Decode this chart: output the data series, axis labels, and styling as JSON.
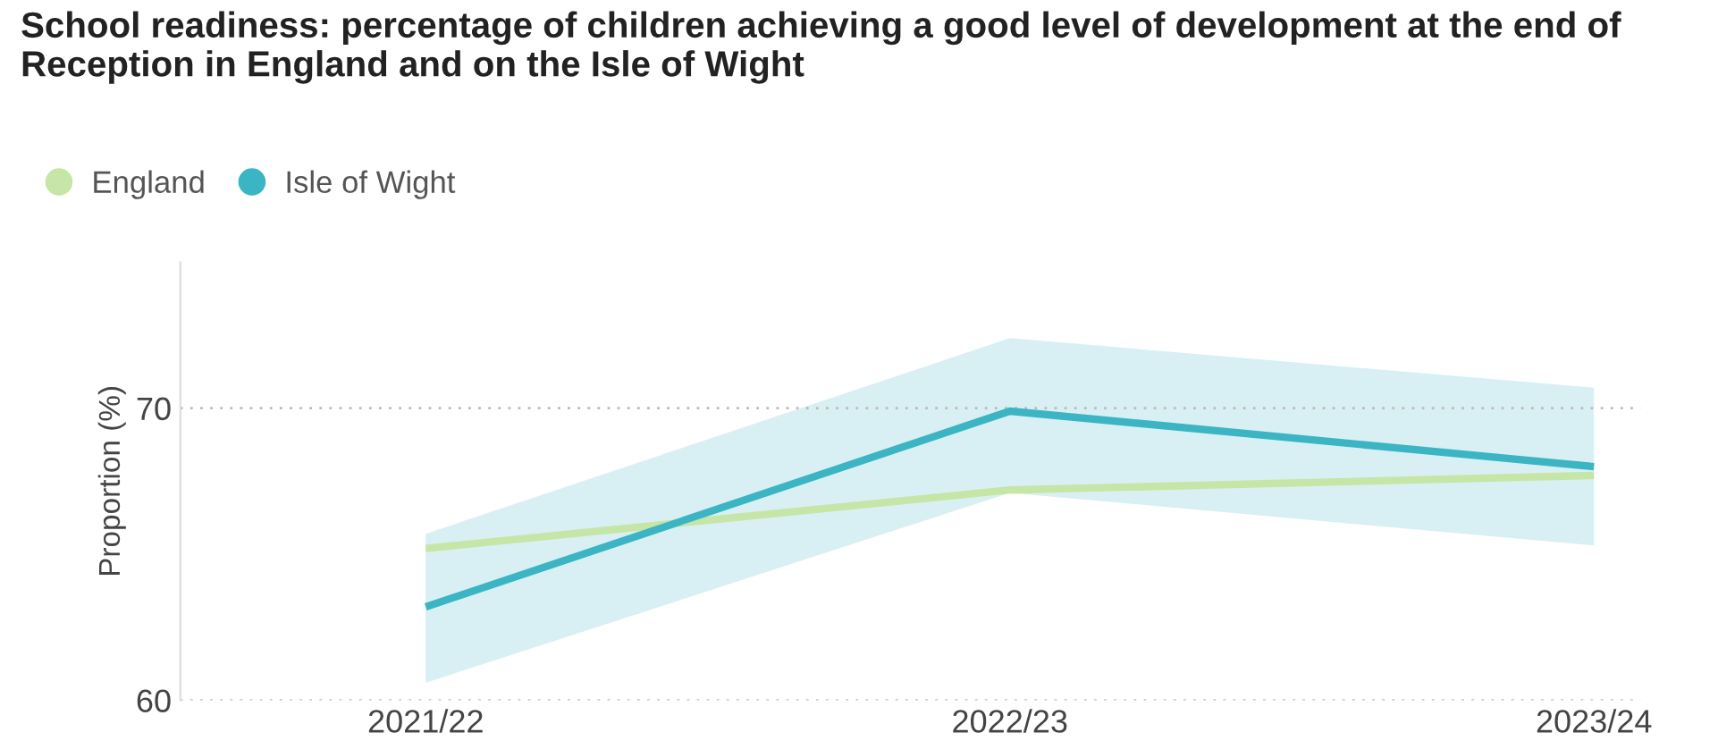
{
  "chart_data": {
    "type": "line",
    "title": "School readiness: percentage of children achieving a good level of development at the end of Reception in England and on the Isle of Wight",
    "ylabel": "Proportion (%)",
    "categories": [
      "2021/22",
      "2022/23",
      "2023/24"
    ],
    "series": [
      {
        "name": "England",
        "color": "#c5e6a6",
        "values": [
          65.2,
          67.2,
          67.7
        ]
      },
      {
        "name": "Isle of Wight",
        "color": "#3bb5c4",
        "values": [
          63.2,
          69.9,
          68.0
        ],
        "lower": [
          60.6,
          67.1,
          65.3
        ],
        "upper": [
          65.7,
          72.4,
          70.7
        ]
      }
    ],
    "ylim": [
      60,
      75
    ],
    "yticks": [
      60,
      70
    ],
    "grid": "y",
    "legend": "top left",
    "marker": "none",
    "line_style": "solid"
  }
}
